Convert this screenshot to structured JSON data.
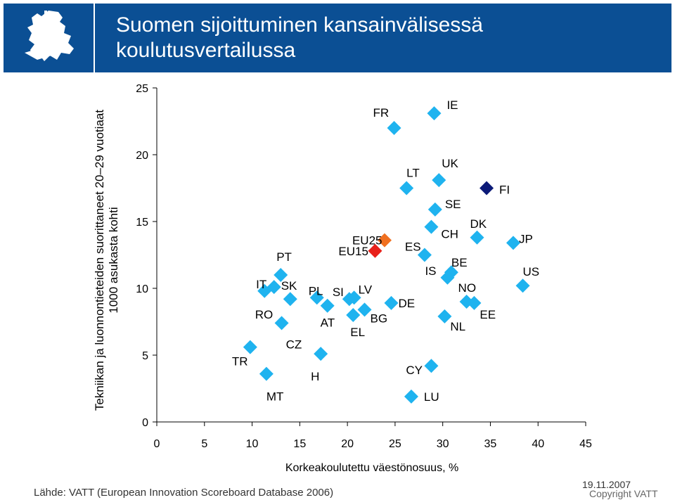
{
  "header": {
    "title_line1": "Suomen sijoittuminen kansainvälisessä",
    "title_line2": "koulutusvertailussa",
    "logo": "finnish-lion-emblem"
  },
  "footer": {
    "source": "Lähde: VATT (European Innovation Scoreboard Database 2006)",
    "date": "19.11.2007",
    "copyright": "Copyright  VATT"
  },
  "colors": {
    "brand": "#0b4f94",
    "point": "#1fb3ef",
    "fi": "#0c1a78",
    "eu25": "#f07020",
    "eu15": "#e8201a"
  },
  "chart_data": {
    "type": "scatter",
    "xlabel": "Korkeakoulutettu väestönosuus, %",
    "ylabel_line1": "Tekniikan ja luonnontieteiden suorittaneet 20–29 vuotiaat",
    "ylabel_line2": "1000 asukasta kohti",
    "xlim": [
      0,
      45
    ],
    "ylim": [
      0,
      25
    ],
    "xticks": [
      0,
      5,
      10,
      15,
      20,
      25,
      30,
      35,
      40,
      45
    ],
    "yticks": [
      0,
      5,
      10,
      15,
      20,
      25
    ],
    "grid": false,
    "points": [
      {
        "label": "FR",
        "x": 24.9,
        "y": 22.0,
        "kind": "country"
      },
      {
        "label": "IE",
        "x": 29.1,
        "y": 23.1,
        "kind": "country"
      },
      {
        "label": "LT",
        "x": 26.2,
        "y": 17.5,
        "kind": "country"
      },
      {
        "label": "UK",
        "x": 29.6,
        "y": 18.1,
        "kind": "country"
      },
      {
        "label": "FI",
        "x": 34.6,
        "y": 17.5,
        "kind": "highlight"
      },
      {
        "label": "SE",
        "x": 29.2,
        "y": 15.9,
        "kind": "country"
      },
      {
        "label": "CH",
        "x": 28.8,
        "y": 14.6,
        "kind": "country"
      },
      {
        "label": "DK",
        "x": 33.6,
        "y": 13.8,
        "kind": "country"
      },
      {
        "label": "JP",
        "x": 37.4,
        "y": 13.4,
        "kind": "country"
      },
      {
        "label": "EU25",
        "x": 23.9,
        "y": 13.6,
        "kind": "eu25"
      },
      {
        "label": "EU15",
        "x": 22.9,
        "y": 12.8,
        "kind": "eu15"
      },
      {
        "label": "ES",
        "x": 28.1,
        "y": 12.5,
        "kind": "country"
      },
      {
        "label": "BE",
        "x": 30.9,
        "y": 11.2,
        "kind": "country"
      },
      {
        "label": "IS",
        "x": 30.5,
        "y": 10.8,
        "kind": "country"
      },
      {
        "label": "US",
        "x": 38.4,
        "y": 10.2,
        "kind": "country"
      },
      {
        "label": "PT",
        "x": 13.0,
        "y": 11.0,
        "kind": "country"
      },
      {
        "label": "IT",
        "x": 11.3,
        "y": 9.8,
        "kind": "country"
      },
      {
        "label": "SK",
        "x": 12.3,
        "y": 10.1,
        "kind": "country"
      },
      {
        "label": "PL",
        "x": 16.8,
        "y": 9.3,
        "kind": "country"
      },
      {
        "label": "SI",
        "x": 20.2,
        "y": 9.2,
        "kind": "country"
      },
      {
        "label": "LV",
        "x": 20.7,
        "y": 9.3,
        "kind": "country"
      },
      {
        "label": "DE",
        "x": 24.6,
        "y": 8.9,
        "kind": "country"
      },
      {
        "label": "RO",
        "x": 14.0,
        "y": 9.2,
        "kind": "country"
      },
      {
        "label": "AT",
        "x": 17.9,
        "y": 8.7,
        "kind": "country"
      },
      {
        "label": "BG",
        "x": 21.8,
        "y": 8.4,
        "kind": "country"
      },
      {
        "label": "EL",
        "x": 20.6,
        "y": 8.0,
        "kind": "country"
      },
      {
        "label": "NO",
        "x": 32.5,
        "y": 9.0,
        "kind": "country"
      },
      {
        "label": "EE",
        "x": 33.3,
        "y": 8.9,
        "kind": "country"
      },
      {
        "label": "NL",
        "x": 30.2,
        "y": 7.9,
        "kind": "country"
      },
      {
        "label": "CZ",
        "x": 13.1,
        "y": 7.4,
        "kind": "country"
      },
      {
        "label": "TR",
        "x": 9.8,
        "y": 5.6,
        "kind": "country"
      },
      {
        "label": "H",
        "x": 17.2,
        "y": 5.1,
        "kind": "country"
      },
      {
        "label": "MT",
        "x": 11.5,
        "y": 3.6,
        "kind": "country"
      },
      {
        "label": "CY",
        "x": 28.8,
        "y": 4.2,
        "kind": "country"
      },
      {
        "label": "LU",
        "x": 26.7,
        "y": 1.9,
        "kind": "country"
      }
    ]
  }
}
